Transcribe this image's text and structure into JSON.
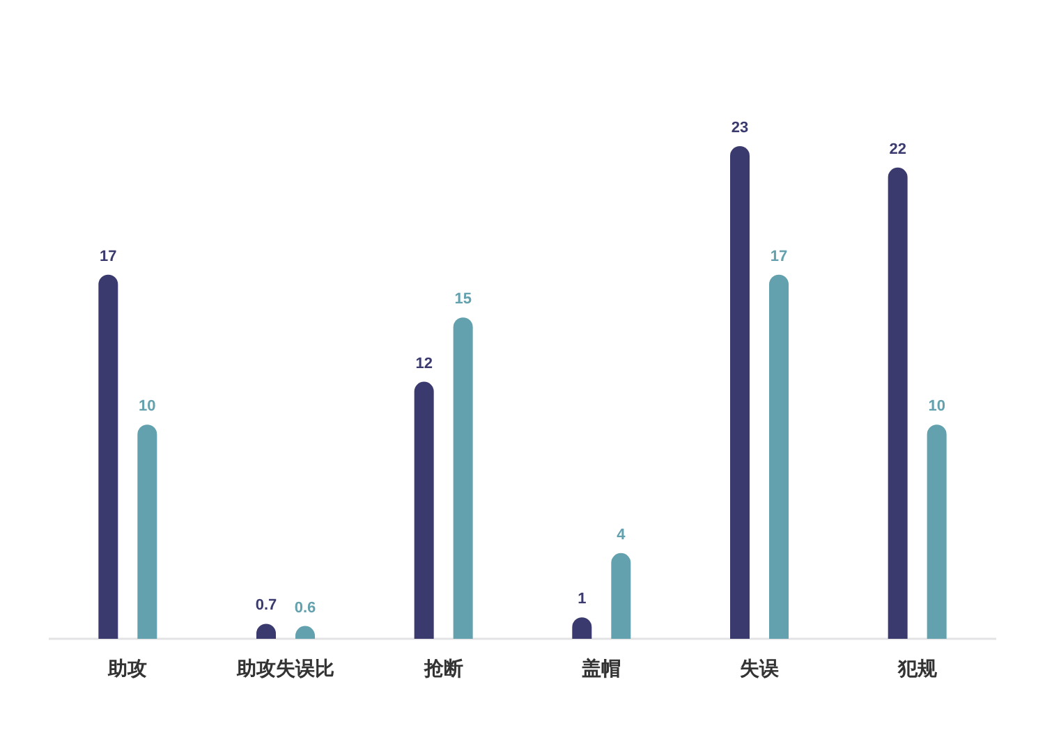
{
  "chart_data": {
    "type": "bar",
    "categories": [
      "助攻",
      "助攻失误比",
      "抢断",
      "盖帽",
      "失误",
      "犯规"
    ],
    "series": [
      {
        "color": "#3b3a6e",
        "values": [
          17,
          0.7,
          12,
          1,
          23,
          22
        ]
      },
      {
        "color": "#62a1ad",
        "values": [
          10,
          0.6,
          15,
          4,
          17,
          10
        ]
      }
    ],
    "data_labels": true
  }
}
